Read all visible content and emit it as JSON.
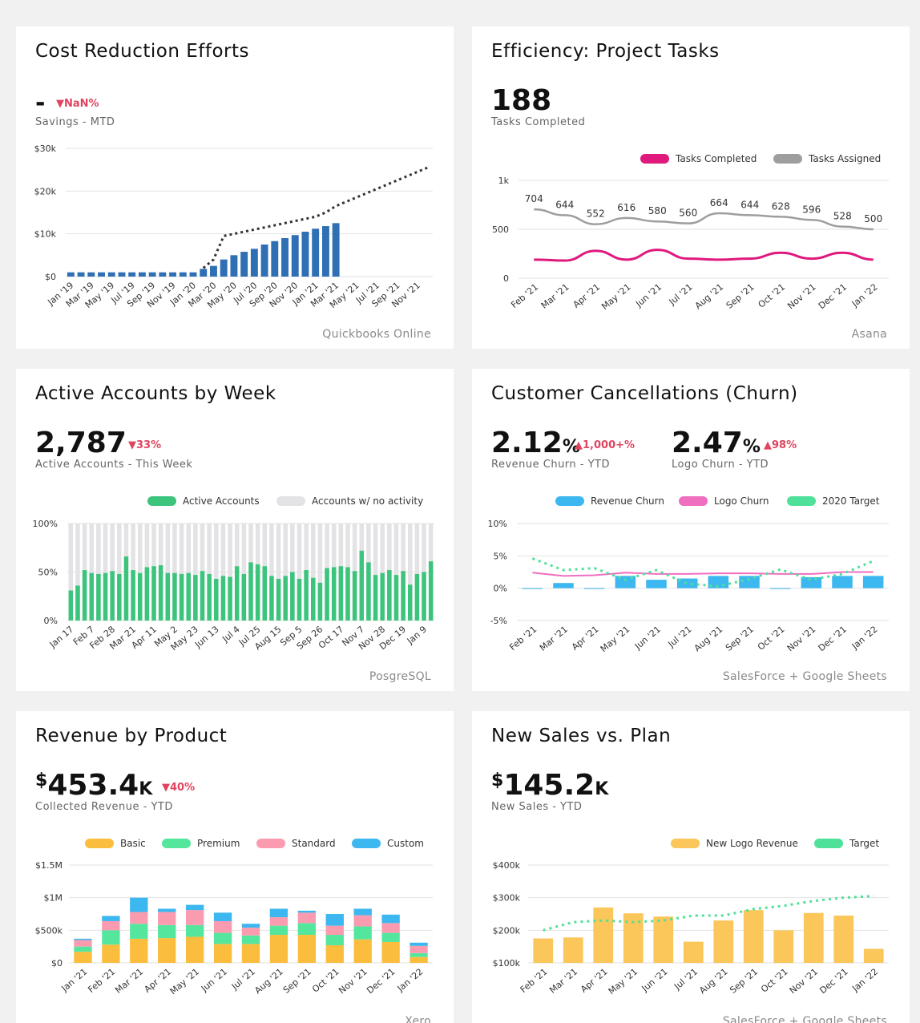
{
  "cards": {
    "cost": {
      "title": "Cost Reduction Efforts",
      "kpi_value": "-",
      "delta": "▼NaN%",
      "kpi_label": "Savings - MTD",
      "source": "Quickbooks Online"
    },
    "efficiency": {
      "title": "Efficiency: Project Tasks",
      "kpi_value": "188",
      "kpi_label": "Tasks Completed",
      "source": "Asana"
    },
    "active": {
      "title": "Active Accounts by Week",
      "kpi_value": "2,787",
      "delta": "▼33%",
      "kpi_label": "Active Accounts - This Week",
      "source": "PosgreSQL"
    },
    "churn": {
      "title": "Customer Cancellations (Churn)",
      "kpi1_value": "2.12",
      "kpi1_unit": "%",
      "kpi1_delta": "▲1,000+%",
      "kpi1_label": "Revenue Churn - YTD",
      "kpi2_value": "2.47",
      "kpi2_unit": "%",
      "kpi2_delta": "▲98%",
      "kpi2_label": "Logo Churn - YTD",
      "source": "SalesForce + Google Sheets"
    },
    "revenue": {
      "title": "Revenue by Product",
      "kpi_prefix": "$",
      "kpi_value": "453.4",
      "kpi_unit": "K",
      "delta": "▼40%",
      "kpi_label": "Collected Revenue - YTD",
      "source": "Xero"
    },
    "sales": {
      "title": "New Sales vs. Plan",
      "kpi_prefix": "$",
      "kpi_value": "145.2",
      "kpi_unit": "K",
      "kpi_label": "New Sales - YTD",
      "source": "SalesForce + Google Sheets"
    }
  },
  "chart_data": [
    {
      "id": "cost",
      "type": "bar",
      "categories": [
        "Jan '19",
        "Feb '19",
        "Mar '19",
        "Apr '19",
        "May '19",
        "Jun '19",
        "Jul '19",
        "Aug '19",
        "Sep '19",
        "Oct '19",
        "Nov '19",
        "Dec '19",
        "Jan '20",
        "Feb '20",
        "Mar '20",
        "Apr '20",
        "May '20",
        "Jun '20",
        "Jul '20",
        "Aug '20",
        "Sep '20",
        "Oct '20",
        "Nov '20",
        "Dec '20",
        "Jan '21",
        "Feb '21",
        "Mar '21",
        "Apr '21",
        "May '21",
        "Jun '21",
        "Jul '21",
        "Aug '21",
        "Sep '21",
        "Oct '21",
        "Nov '21",
        "Dec '21"
      ],
      "tick_labels": [
        "Jan '19",
        "Mar '19",
        "May '19",
        "Jul '19",
        "Sep '19",
        "Nov '19",
        "Jan '20",
        "Mar '20",
        "May '20",
        "Jul '20",
        "Sep '20",
        "Nov '20",
        "Jan '21",
        "Mar '21",
        "May '21",
        "Jul '21",
        "Sep '21",
        "Nov '21"
      ],
      "series": [
        {
          "name": "Savings",
          "values": [
            1000,
            1000,
            1000,
            1000,
            1000,
            1000,
            1000,
            1000,
            1000,
            1000,
            1000,
            1000,
            1000,
            1800,
            2500,
            4000,
            5000,
            5800,
            6500,
            7500,
            8300,
            9000,
            9700,
            10500,
            11200,
            11800,
            12500,
            null,
            null,
            null,
            null,
            null,
            null,
            null,
            null,
            null
          ]
        },
        {
          "name": "Projection",
          "dashed": true,
          "values": [
            null,
            null,
            null,
            null,
            null,
            null,
            null,
            null,
            null,
            null,
            null,
            null,
            null,
            2000,
            4000,
            9500,
            10000,
            10500,
            11000,
            11500,
            12000,
            12500,
            13000,
            13500,
            14000,
            15000,
            16500,
            17500,
            18500,
            19500,
            20500,
            21500,
            22500,
            23500,
            24500,
            25500
          ]
        }
      ],
      "yticks": [
        "$0",
        "$10k",
        "$20k",
        "$30k"
      ],
      "ylim": [
        0,
        30000
      ],
      "colors": {
        "bar": "#2f6fb3",
        "projection": "#333333"
      }
    },
    {
      "id": "efficiency",
      "type": "line",
      "categories": [
        "Feb '21",
        "Mar '21",
        "Apr '21",
        "May '21",
        "Jun '21",
        "Jul '21",
        "Aug '21",
        "Sep '21",
        "Oct '21",
        "Nov '21",
        "Dec '21",
        "Jan '22"
      ],
      "series": [
        {
          "name": "Tasks Completed",
          "color": "#e0197d",
          "values": [
            190,
            180,
            280,
            190,
            290,
            200,
            190,
            200,
            260,
            200,
            260,
            190
          ]
        },
        {
          "name": "Tasks Assigned",
          "color": "#9e9e9e",
          "values": [
            704,
            644,
            552,
            616,
            580,
            560,
            664,
            644,
            628,
            596,
            528,
            500
          ]
        }
      ],
      "data_labels": [
        "704",
        "644",
        "552",
        "616",
        "580",
        "560",
        "664",
        "644",
        "628",
        "596",
        "528",
        "500"
      ],
      "yticks": [
        "0",
        "500",
        "1k"
      ],
      "ylim": [
        0,
        1000
      ]
    },
    {
      "id": "active",
      "type": "bar",
      "stacked_percent": true,
      "tick_labels": [
        "Jan 17",
        "Feb 7",
        "Feb 28",
        "Mar 21",
        "Apr 11",
        "May 2",
        "May 23",
        "Jun 13",
        "Jul 4",
        "Jul 25",
        "Aug 15",
        "Sep 5",
        "Sep 26",
        "Oct 17",
        "Nov 7",
        "Nov 28",
        "Dec 19",
        "Jan 9"
      ],
      "series": [
        {
          "name": "Active Accounts",
          "color": "#3cc47c",
          "values": [
            31,
            36,
            52,
            49,
            48,
            49,
            51,
            48,
            66,
            52,
            49,
            55,
            56,
            57,
            49,
            49,
            48,
            49,
            47,
            51,
            48,
            43,
            46,
            45,
            56,
            48,
            60,
            58,
            56,
            46,
            43,
            46,
            50,
            43,
            52,
            44,
            39,
            54,
            55,
            56,
            55,
            51,
            72,
            60,
            47,
            49,
            52,
            47,
            51,
            37,
            48,
            50,
            61
          ]
        },
        {
          "name": "Accounts w/ no activity",
          "color": "#e3e3e6",
          "values": [
            69,
            64,
            48,
            51,
            52,
            51,
            49,
            52,
            34,
            48,
            51,
            45,
            44,
            43,
            51,
            51,
            52,
            51,
            53,
            49,
            52,
            57,
            54,
            55,
            44,
            52,
            40,
            42,
            44,
            54,
            57,
            54,
            50,
            57,
            48,
            56,
            61,
            46,
            45,
            44,
            45,
            49,
            28,
            40,
            53,
            51,
            48,
            53,
            49,
            63,
            52,
            50,
            39
          ]
        }
      ],
      "yticks": [
        "0%",
        "50%",
        "100%"
      ],
      "ylim": [
        0,
        100
      ]
    },
    {
      "id": "churn",
      "type": "bar",
      "categories": [
        "Feb '21",
        "Mar '21",
        "Apr '21",
        "May '21",
        "Jun '21",
        "Jul '21",
        "Aug '21",
        "Sep '21",
        "Oct '21",
        "Nov '21",
        "Dec '21",
        "Jan '22"
      ],
      "series": [
        {
          "name": "Revenue Churn",
          "color": "#3db7ef",
          "values": [
            0,
            0.8,
            0,
            1.9,
            1.3,
            1.5,
            1.9,
            1.9,
            0,
            1.7,
            1.9,
            1.9
          ]
        },
        {
          "name": "Logo Churn",
          "color": "#f06ec0",
          "values": [
            2.4,
            1.9,
            2.0,
            2.4,
            2.2,
            2.2,
            2.3,
            2.3,
            2.2,
            2.2,
            2.5,
            2.5
          ]
        },
        {
          "name": "2020 Target",
          "color": "#4fe199",
          "dashed": true,
          "values": [
            4.6,
            2.8,
            3.1,
            1.3,
            2.8,
            0.7,
            0.3,
            1.4,
            2.9,
            1.3,
            2.2,
            4.2
          ]
        }
      ],
      "yticks": [
        "-5%",
        "0%",
        "5%",
        "10%"
      ],
      "ylim": [
        -5,
        10
      ]
    },
    {
      "id": "revenue",
      "type": "bar",
      "stacked": true,
      "categories": [
        "Jan '21",
        "Feb '21",
        "Mar '21",
        "Apr '21",
        "May '21",
        "Jun '21",
        "Jul '21",
        "Aug '21",
        "Sep '21",
        "Oct '21",
        "Nov '21",
        "Dec '21",
        "Jan '22"
      ],
      "series": [
        {
          "name": "Basic",
          "color": "#fbbd3d",
          "values": [
            170,
            280,
            370,
            380,
            400,
            290,
            290,
            430,
            430,
            270,
            360,
            320,
            90
          ]
        },
        {
          "name": "Premium",
          "color": "#55e69e",
          "values": [
            80,
            220,
            230,
            200,
            180,
            170,
            130,
            140,
            180,
            160,
            200,
            140,
            60
          ]
        },
        {
          "name": "Standard",
          "color": "#fb9bb0",
          "values": [
            100,
            140,
            180,
            200,
            230,
            180,
            120,
            130,
            160,
            140,
            170,
            150,
            110
          ]
        },
        {
          "name": "Custom",
          "color": "#3db7ef",
          "values": [
            20,
            80,
            220,
            50,
            80,
            130,
            60,
            130,
            30,
            180,
            100,
            130,
            50
          ]
        }
      ],
      "yticks": [
        "$0",
        "$500k",
        "$1M",
        "$1.5M"
      ],
      "ylim": [
        0,
        1500
      ]
    },
    {
      "id": "sales",
      "type": "bar",
      "categories": [
        "Feb '21",
        "Mar '21",
        "Apr '21",
        "May '21",
        "Jun '21",
        "Jul '21",
        "Aug '21",
        "Sep '21",
        "Oct '21",
        "Nov '21",
        "Dec '21",
        "Jan '22"
      ],
      "series": [
        {
          "name": "New Logo Revenue",
          "color": "#fbc65a",
          "values": [
            175,
            178,
            270,
            252,
            242,
            165,
            230,
            262,
            200,
            253,
            245,
            143
          ]
        },
        {
          "name": "Target",
          "color": "#4fe199",
          "dashed": true,
          "values": [
            200,
            225,
            230,
            225,
            230,
            245,
            245,
            265,
            275,
            290,
            300,
            305
          ]
        }
      ],
      "yticks": [
        "$100k",
        "$200k",
        "$300k",
        "$400k"
      ],
      "ylim": [
        100,
        400
      ]
    }
  ]
}
